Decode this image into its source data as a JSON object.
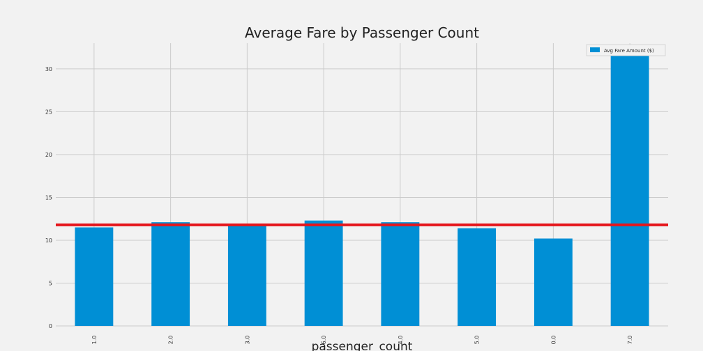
{
  "chart_data": {
    "type": "bar",
    "title": "Average Fare by Passenger Count",
    "xlabel": "passenger_count",
    "ylabel": "",
    "categories": [
      "1.0",
      "2.0",
      "3.0",
      "6.0",
      "4.0",
      "5.0",
      "0.0",
      "7.0"
    ],
    "series": [
      {
        "name": "Avg Fare Amount ($)",
        "values": [
          11.5,
          12.1,
          11.8,
          12.3,
          12.1,
          11.4,
          10.2,
          31.6
        ],
        "color": "#008fd5"
      }
    ],
    "yticks": [
      0,
      5,
      10,
      15,
      20,
      25,
      30
    ],
    "ylim": [
      0,
      33
    ],
    "reference_line": {
      "value": 11.8,
      "color": "#e5161c"
    },
    "grid": true,
    "legend_position": "top-right",
    "background_color": "#f2f2f2",
    "grid_color": "#cbcbcb"
  }
}
